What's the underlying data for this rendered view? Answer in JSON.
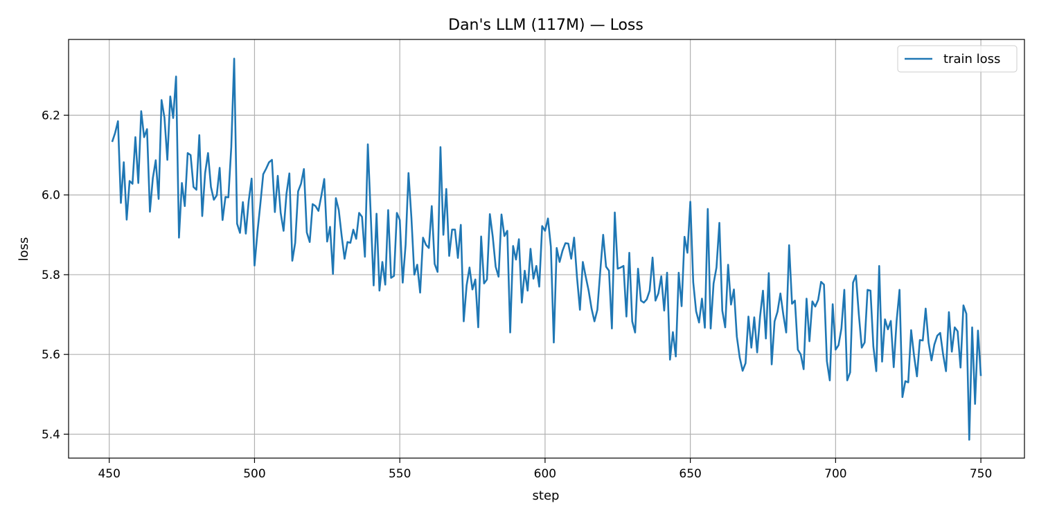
{
  "chart_data": {
    "type": "line",
    "title": "Dan's LLM (117M) — Loss",
    "xlabel": "step",
    "ylabel": "loss",
    "xlim": [
      436,
      765
    ],
    "ylim": [
      5.34,
      6.39
    ],
    "xticks": [
      450,
      500,
      550,
      600,
      650,
      700,
      750
    ],
    "yticks": [
      5.4,
      5.6,
      5.8,
      6.0,
      6.2
    ],
    "grid": true,
    "legend_position": "top-right",
    "series": [
      {
        "name": "train loss",
        "color": "#1f77b4",
        "x_start": 451,
        "x_step": 1,
        "values": [
          6.133,
          6.155,
          6.185,
          5.98,
          6.082,
          5.938,
          6.035,
          6.028,
          6.145,
          6.03,
          6.21,
          6.145,
          6.165,
          5.958,
          6.042,
          6.087,
          5.99,
          6.238,
          6.194,
          6.088,
          6.247,
          6.193,
          6.297,
          5.893,
          6.03,
          5.972,
          6.105,
          6.1,
          6.02,
          6.013,
          6.15,
          5.947,
          6.055,
          6.105,
          6.02,
          5.988,
          5.999,
          6.068,
          5.937,
          5.995,
          5.994,
          6.12,
          6.342,
          5.928,
          5.905,
          5.982,
          5.903,
          5.985,
          6.041,
          5.823,
          5.906,
          5.977,
          6.052,
          6.066,
          6.082,
          6.088,
          5.957,
          6.048,
          5.955,
          5.91,
          6.003,
          6.054,
          5.835,
          5.88,
          6.009,
          6.028,
          6.065,
          5.906,
          5.882,
          5.977,
          5.972,
          5.96,
          5.998,
          6.04,
          5.883,
          5.92,
          5.802,
          5.992,
          5.962,
          5.897,
          5.84,
          5.882,
          5.88,
          5.913,
          5.89,
          5.955,
          5.945,
          5.845,
          6.127,
          5.95,
          5.773,
          5.953,
          5.76,
          5.832,
          5.775,
          5.962,
          5.792,
          5.797,
          5.955,
          5.937,
          5.78,
          5.875,
          6.055,
          5.943,
          5.8,
          5.825,
          5.755,
          5.893,
          5.875,
          5.867,
          5.972,
          5.827,
          5.807,
          6.12,
          5.9,
          6.015,
          5.847,
          5.913,
          5.913,
          5.842,
          5.925,
          5.683,
          5.773,
          5.818,
          5.763,
          5.788,
          5.668,
          5.896,
          5.778,
          5.788,
          5.952,
          5.895,
          5.82,
          5.795,
          5.951,
          5.897,
          5.91,
          5.655,
          5.872,
          5.838,
          5.889,
          5.73,
          5.81,
          5.76,
          5.865,
          5.79,
          5.822,
          5.77,
          5.922,
          5.91,
          5.941,
          5.87,
          5.63,
          5.867,
          5.832,
          5.86,
          5.879,
          5.878,
          5.84,
          5.893,
          5.793,
          5.712,
          5.832,
          5.795,
          5.76,
          5.715,
          5.683,
          5.712,
          5.809,
          5.9,
          5.82,
          5.81,
          5.665,
          5.956,
          5.815,
          5.818,
          5.822,
          5.695,
          5.855,
          5.683,
          5.655,
          5.815,
          5.735,
          5.73,
          5.738,
          5.76,
          5.843,
          5.735,
          5.753,
          5.796,
          5.71,
          5.805,
          5.587,
          5.656,
          5.595,
          5.805,
          5.721,
          5.895,
          5.855,
          5.983,
          5.781,
          5.708,
          5.68,
          5.74,
          5.667,
          5.965,
          5.665,
          5.778,
          5.818,
          5.93,
          5.71,
          5.668,
          5.825,
          5.725,
          5.763,
          5.645,
          5.592,
          5.559,
          5.578,
          5.695,
          5.617,
          5.693,
          5.605,
          5.695,
          5.76,
          5.64,
          5.804,
          5.575,
          5.683,
          5.707,
          5.753,
          5.7,
          5.655,
          5.874,
          5.727,
          5.735,
          5.612,
          5.6,
          5.563,
          5.74,
          5.633,
          5.733,
          5.72,
          5.737,
          5.782,
          5.775,
          5.583,
          5.535,
          5.726,
          5.612,
          5.623,
          5.665,
          5.762,
          5.535,
          5.555,
          5.78,
          5.798,
          5.7,
          5.617,
          5.63,
          5.762,
          5.76,
          5.62,
          5.558,
          5.822,
          5.582,
          5.688,
          5.663,
          5.684,
          5.568,
          5.684,
          5.762,
          5.493,
          5.533,
          5.53,
          5.661,
          5.597,
          5.545,
          5.636,
          5.635,
          5.715,
          5.63,
          5.585,
          5.625,
          5.647,
          5.654,
          5.6,
          5.558,
          5.706,
          5.607,
          5.668,
          5.658,
          5.567,
          5.723,
          5.702,
          5.386,
          5.668,
          5.476,
          5.66,
          5.546
        ]
      }
    ]
  }
}
